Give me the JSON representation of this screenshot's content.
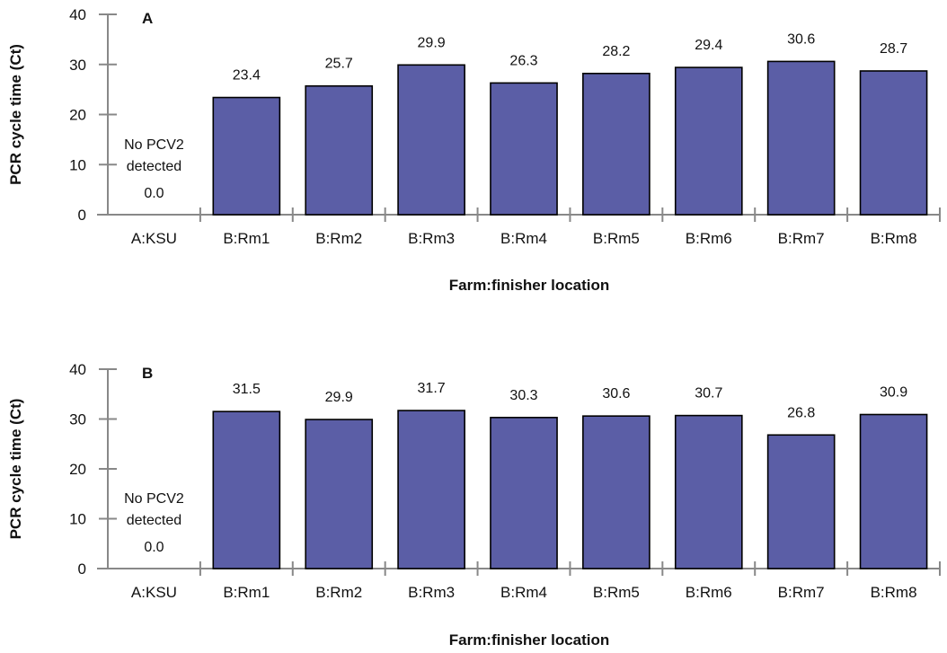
{
  "chart_data": [
    {
      "type": "bar",
      "panel_label": "A",
      "categories": [
        "A:KSU",
        "B:Rm1",
        "B:Rm2",
        "B:Rm3",
        "B:Rm4",
        "B:Rm5",
        "B:Rm6",
        "B:Rm7",
        "B:Rm8"
      ],
      "values": [
        0.0,
        23.4,
        25.7,
        29.9,
        26.3,
        28.2,
        29.4,
        30.6,
        28.7
      ],
      "data_labels": [
        "0.0",
        "23.4",
        "25.7",
        "29.9",
        "26.3",
        "28.2",
        "29.4",
        "30.6",
        "28.7"
      ],
      "annotation": [
        "No PCV2",
        "detected"
      ],
      "xlabel": "Farm:finisher location",
      "ylabel": "PCR cycle time (Ct)",
      "ylim": [
        0,
        40
      ],
      "yticks": [
        "0",
        "10",
        "20",
        "30",
        "40"
      ],
      "bar_color": "#5b5ea6",
      "grid": false
    },
    {
      "type": "bar",
      "panel_label": "B",
      "categories": [
        "A:KSU",
        "B:Rm1",
        "B:Rm2",
        "B:Rm3",
        "B:Rm4",
        "B:Rm5",
        "B:Rm6",
        "B:Rm7",
        "B:Rm8"
      ],
      "values": [
        0.0,
        31.5,
        29.9,
        31.7,
        30.3,
        30.6,
        30.7,
        26.8,
        30.9
      ],
      "data_labels": [
        "0.0",
        "31.5",
        "29.9",
        "31.7",
        "30.3",
        "30.6",
        "30.7",
        "26.8",
        "30.9"
      ],
      "annotation": [
        "No PCV2",
        "detected"
      ],
      "xlabel": "Farm:finisher location",
      "ylabel": "PCR cycle time (Ct)",
      "ylim": [
        0,
        40
      ],
      "yticks": [
        "0",
        "10",
        "20",
        "30",
        "40"
      ],
      "bar_color": "#5b5ea6",
      "grid": false
    }
  ]
}
